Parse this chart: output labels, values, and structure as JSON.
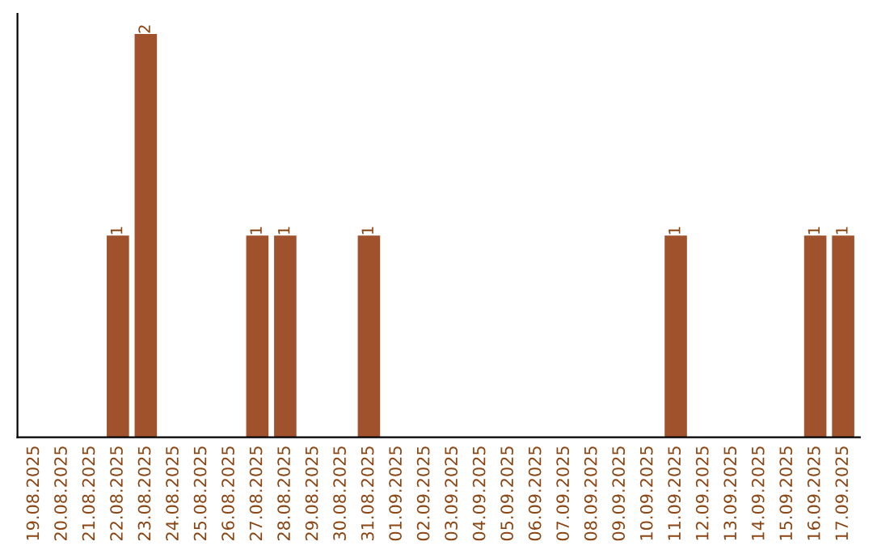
{
  "chart_data": {
    "type": "bar",
    "categories": [
      "19.08.2025",
      "20.08.2025",
      "21.08.2025",
      "22.08.2025",
      "23.08.2025",
      "24.08.2025",
      "25.08.2025",
      "26.08.2025",
      "27.08.2025",
      "28.08.2025",
      "29.08.2025",
      "30.08.2025",
      "31.08.2025",
      "01.09.2025",
      "02.09.2025",
      "03.09.2025",
      "04.09.2025",
      "05.09.2025",
      "06.09.2025",
      "07.09.2025",
      "08.09.2025",
      "09.09.2025",
      "10.09.2025",
      "11.09.2025",
      "12.09.2025",
      "13.09.2025",
      "14.09.2025",
      "15.09.2025",
      "16.09.2025",
      "17.09.2025"
    ],
    "values": [
      0,
      0,
      0,
      1,
      2,
      0,
      0,
      0,
      1,
      1,
      0,
      0,
      1,
      0,
      0,
      0,
      0,
      0,
      0,
      0,
      0,
      0,
      0,
      1,
      0,
      0,
      0,
      0,
      1,
      1
    ],
    "color": "#a0522d",
    "value_labels": [
      null,
      null,
      null,
      "1",
      "2",
      null,
      null,
      null,
      "1",
      "1",
      null,
      null,
      "1",
      null,
      null,
      null,
      null,
      null,
      null,
      null,
      null,
      null,
      null,
      "1",
      null,
      null,
      null,
      null,
      "1",
      "1"
    ],
    "tick_labels": "x",
    "grid": false,
    "legend": false
  }
}
